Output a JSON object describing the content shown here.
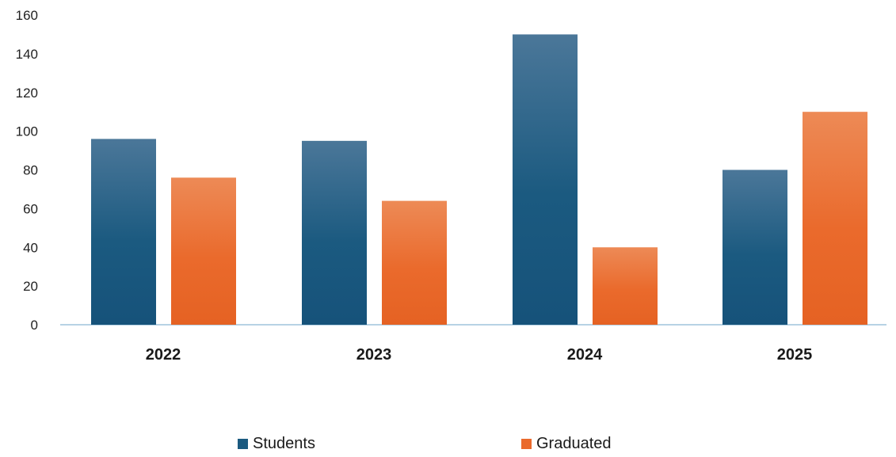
{
  "chart_data": {
    "type": "bar",
    "categories": [
      "2022",
      "2023",
      "2024",
      "2025"
    ],
    "series": [
      {
        "name": "Students",
        "values": [
          96,
          95,
          150,
          80
        ],
        "color": "#1b5a80"
      },
      {
        "name": "Graduated",
        "values": [
          76,
          64,
          40,
          110
        ],
        "color": "#ea6a2c"
      }
    ],
    "ylim": [
      0,
      160
    ],
    "yticks": [
      0,
      20,
      40,
      60,
      80,
      100,
      120,
      140,
      160
    ],
    "title": "",
    "xlabel": "",
    "ylabel": "",
    "grid": false,
    "legend": "bottom"
  }
}
